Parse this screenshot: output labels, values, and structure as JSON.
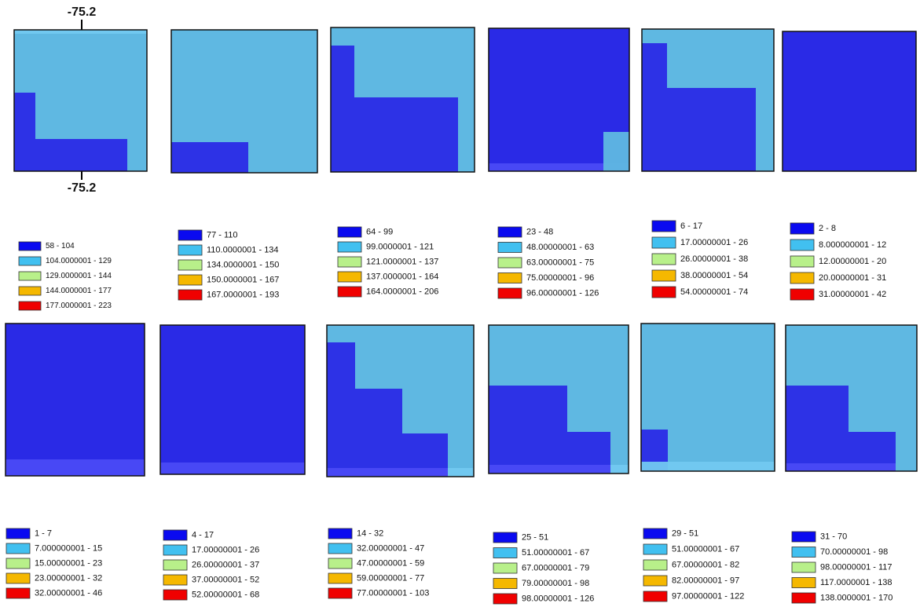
{
  "axis_labels": {
    "top": "-75.2",
    "bottom": "-75.2"
  },
  "legend_colors": [
    "#0a0af0",
    "#41c0f0",
    "#b8f08a",
    "#f5b800",
    "#f00000"
  ],
  "panels": [
    {
      "legend": [
        "58 - 104",
        "104.0000001 - 129",
        "129.0000001 - 144",
        "144.0000001 - 177",
        "177.0000001 - 223"
      ]
    },
    {
      "legend": [
        "77 - 110",
        "110.0000001 - 134",
        "134.0000001 - 150",
        "150.0000001 - 167",
        "167.0000001 - 193"
      ]
    },
    {
      "legend": [
        "64 - 99",
        "99.0000001 - 121",
        "121.0000001 - 137",
        "137.0000001 - 164",
        "164.0000001 - 206"
      ]
    },
    {
      "legend": [
        "23 - 48",
        "48.00000001 - 63",
        "63.00000001 - 75",
        "75.00000001 - 96",
        "96.00000001 - 126"
      ]
    },
    {
      "legend": [
        "6 - 17",
        "17.00000001 - 26",
        "26.00000001 - 38",
        "38.00000001 - 54",
        "54.00000001 - 74"
      ]
    },
    {
      "legend": [
        "2 - 8",
        "8.000000001 - 12",
        "12.00000001 - 20",
        "20.00000001 - 31",
        "31.00000001 - 42"
      ]
    },
    {
      "legend": [
        "1 - 7",
        "7.000000001 - 15",
        "15.00000001 - 23",
        "23.00000001 - 32",
        "32.00000001 - 46"
      ]
    },
    {
      "legend": [
        "4 - 17",
        "17.00000001 - 26",
        "26.00000001 - 37",
        "37.00000001 - 52",
        "52.00000001 - 68"
      ]
    },
    {
      "legend": [
        "14 - 32",
        "32.00000001 - 47",
        "47.00000001 - 59",
        "59.00000001 - 77",
        "77.00000001 - 103"
      ]
    },
    {
      "legend": [
        "25 - 51",
        "51.00000001 - 67",
        "67.00000001 - 79",
        "79.00000001 - 98",
        "98.00000001 - 126"
      ]
    },
    {
      "legend": [
        "29 - 51",
        "51.00000001 - 67",
        "67.00000001 - 82",
        "82.00000001 - 97",
        "97.00000001 - 122"
      ]
    },
    {
      "legend": [
        "31 - 70",
        "70.00000001 - 98",
        "98.00000001 - 117",
        "117.0000001 - 138",
        "138.0000001 - 170"
      ]
    }
  ]
}
